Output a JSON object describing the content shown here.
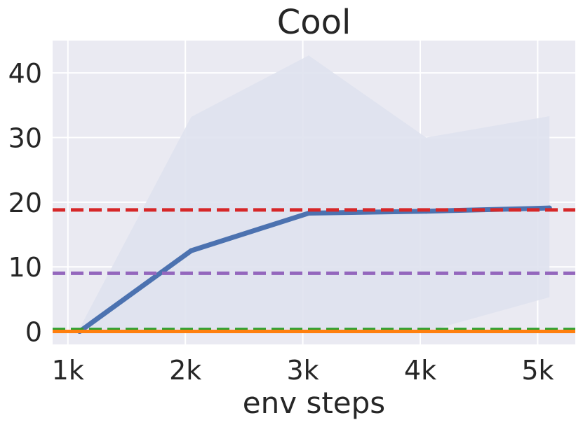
{
  "chart_data": {
    "type": "line",
    "title": "Cool",
    "xlabel": "env steps",
    "ylabel": "",
    "x": [
      1100,
      2050,
      3050,
      4050,
      5100
    ],
    "xticks": [
      1000,
      2000,
      3000,
      4000,
      5000
    ],
    "xtick_labels": [
      "1k",
      "2k",
      "3k",
      "4k",
      "5k"
    ],
    "xlim": [
      870,
      5320
    ],
    "yticks": [
      0,
      10,
      20,
      30,
      40
    ],
    "ytick_labels": [
      "0",
      "10",
      "20",
      "30",
      "40"
    ],
    "ylim": [
      -2,
      45
    ],
    "grid": true,
    "series": [
      {
        "values": [
          0.0,
          12.5,
          18.3,
          18.6,
          19.1
        ],
        "band_upper": [
          0.5,
          33.2,
          42.7,
          30.0,
          33.3
        ],
        "band_lower": [
          0.0,
          0.0,
          0.0,
          0.0,
          5.3
        ],
        "color": "#4c72b0"
      }
    ],
    "reference_lines": [
      {
        "y": 18.8,
        "color": "#d62728",
        "style": "dashed"
      },
      {
        "y": 9.0,
        "color": "#9467bd",
        "style": "dashed"
      },
      {
        "y": 0.3,
        "color": "#2ca02c",
        "style": "dashed"
      },
      {
        "y": 0.0,
        "color": "#ff7f0e",
        "style": "solid"
      }
    ],
    "colors": {
      "plot_background": "#eaeaf2",
      "grid": "#ffffff",
      "band": "#dfe2ee"
    }
  }
}
